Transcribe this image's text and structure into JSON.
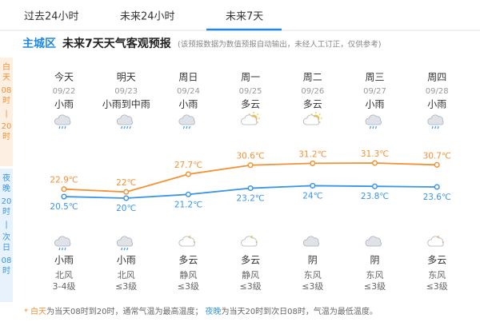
{
  "tabs": [
    "过去24小时",
    "未来24小时",
    "未来7天"
  ],
  "header": {
    "region": "主城区",
    "title": "未来7天天气客观预报",
    "note": "(该预报数据为数值预报自动输出，未经人工订正，仅供参考)"
  },
  "side": {
    "day": [
      "白天",
      "08时",
      "|",
      "20时"
    ],
    "night": [
      "夜晚",
      "20时",
      "|",
      "次日",
      "08时"
    ]
  },
  "days": [
    {
      "name": "今天",
      "date": "09/22",
      "day_weather": "小雨",
      "night_weather": "小雨",
      "wind": "北风",
      "level": "3-4级"
    },
    {
      "name": "明天",
      "date": "09/23",
      "day_weather": "小雨到中雨",
      "night_weather": "小雨",
      "wind": "北风",
      "level": "≤3级"
    },
    {
      "name": "周日",
      "date": "09/24",
      "day_weather": "小雨",
      "night_weather": "多云",
      "wind": "静风",
      "level": "≤3级"
    },
    {
      "name": "周一",
      "date": "09/25",
      "day_weather": "多云",
      "night_weather": "多云",
      "wind": "静风",
      "level": "≤3级"
    },
    {
      "name": "周二",
      "date": "09/26",
      "day_weather": "多云",
      "night_weather": "阴",
      "wind": "东风",
      "level": "≤3级"
    },
    {
      "name": "周三",
      "date": "09/27",
      "day_weather": "小雨",
      "night_weather": "阴",
      "wind": "东风",
      "level": "≤3级"
    },
    {
      "name": "周四",
      "date": "09/28",
      "day_weather": "小雨",
      "night_weather": "多云",
      "wind": "东风",
      "level": "≤3级"
    }
  ],
  "chart_data": {
    "type": "line",
    "series": [
      {
        "color": "#f39133",
        "values": [
          22.9,
          22,
          27.7,
          30.6,
          31.2,
          31.3,
          30.7
        ],
        "value_labels": [
          "22.9℃",
          "22℃",
          "27.7℃",
          "30.6℃",
          "31.2℃",
          "31.3℃",
          "30.7℃"
        ]
      },
      {
        "color": "#3a95e6",
        "values": [
          20.5,
          20,
          21.2,
          23.2,
          24,
          23.8,
          23.6
        ],
        "value_labels": [
          "20.5℃",
          "20℃",
          "21.2℃",
          "23.2℃",
          "24℃",
          "23.8℃",
          "23.6℃"
        ]
      }
    ]
  },
  "footer": {
    "star": "*",
    "day_term": "白天",
    "day_desc": "为当天08时到20时，通常气温为最高温度；",
    "night_term": "夜晚",
    "night_desc": "为当天20时到次日08时，气温为最低温度。"
  }
}
